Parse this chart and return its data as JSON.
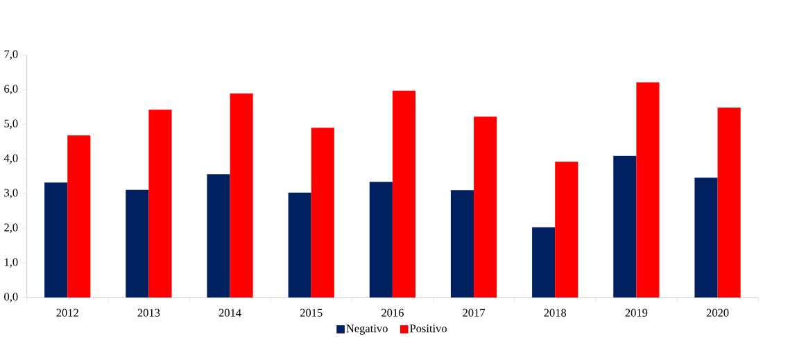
{
  "chart_data": {
    "type": "bar",
    "categories": [
      "2012",
      "2013",
      "2014",
      "2015",
      "2016",
      "2017",
      "2018",
      "2019",
      "2020"
    ],
    "series": [
      {
        "name": "Negativo",
        "color": "#002060",
        "values": [
          3.32,
          3.11,
          3.56,
          3.03,
          3.34,
          3.1,
          2.03,
          4.09,
          3.46
        ]
      },
      {
        "name": "Positivo",
        "color": "#ff0000",
        "values": [
          4.68,
          5.42,
          5.89,
          4.9,
          5.97,
          5.22,
          3.92,
          6.21,
          5.48
        ]
      }
    ],
    "ylim": [
      0,
      7
    ],
    "yticks": [
      {
        "value": 0,
        "label": "0,0"
      },
      {
        "value": 1,
        "label": "1,0"
      },
      {
        "value": 2,
        "label": "2,0"
      },
      {
        "value": 3,
        "label": "3,0"
      },
      {
        "value": 4,
        "label": "4,0"
      },
      {
        "value": 5,
        "label": "5,0"
      },
      {
        "value": 6,
        "label": "6,0"
      },
      {
        "value": 7,
        "label": "7,0"
      }
    ],
    "legend": "bottom"
  }
}
